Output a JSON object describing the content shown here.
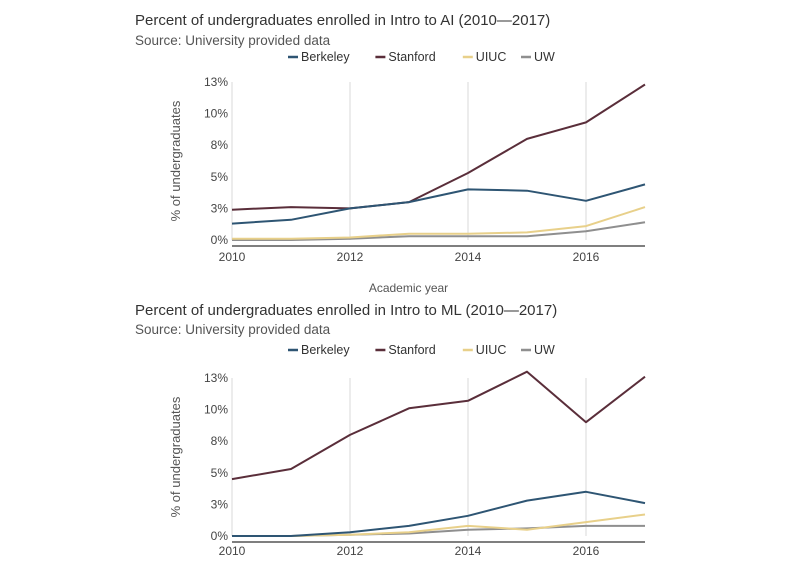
{
  "chart_data": [
    {
      "type": "line",
      "title": "Percent of undergraduates enrolled in Intro to AI (2010—2017)",
      "subtitle": "Source: University provided data",
      "xlabel": "Academic year",
      "ylabel": "% of undergraduates",
      "x": [
        2010,
        2011,
        2012,
        2013,
        2014,
        2015,
        2016,
        2017
      ],
      "x_ticks": [
        "2010",
        "2012",
        "2014",
        "2016"
      ],
      "y_ticks": [
        "0%",
        "3%",
        "5%",
        "8%",
        "10%",
        "13%"
      ],
      "ylim": [
        0,
        12.5
      ],
      "xlim": [
        2010,
        2017
      ],
      "grid": "vertical",
      "legend": "top",
      "series": [
        {
          "name": "Berkeley",
          "color": "#2e5573",
          "values": [
            1.3,
            1.6,
            2.5,
            3.0,
            4.0,
            3.9,
            3.1,
            4.4
          ]
        },
        {
          "name": "Stanford",
          "color": "#5a2e3a",
          "values": [
            2.4,
            2.6,
            2.5,
            3.0,
            5.3,
            8.0,
            9.3,
            12.3
          ]
        },
        {
          "name": "UIUC",
          "color": "#e8d08a",
          "values": [
            0.1,
            0.1,
            0.2,
            0.5,
            0.5,
            0.6,
            1.1,
            2.6
          ]
        },
        {
          "name": "UW",
          "color": "#8f8f8f",
          "values": [
            0.0,
            0.0,
            0.1,
            0.3,
            0.3,
            0.3,
            0.7,
            1.4
          ]
        }
      ]
    },
    {
      "type": "line",
      "title": "Percent of undergraduates enrolled in Intro to ML (2010—2017)",
      "subtitle": "Source: University provided data",
      "xlabel": "",
      "ylabel": "% of undergraduates",
      "x": [
        2010,
        2011,
        2012,
        2013,
        2014,
        2015,
        2016,
        2017
      ],
      "x_ticks": [
        "2010",
        "2012",
        "2014",
        "2016"
      ],
      "y_ticks": [
        "0%",
        "3%",
        "5%",
        "8%",
        "10%",
        "13%"
      ],
      "ylim": [
        0,
        12.5
      ],
      "xlim": [
        2010,
        2017
      ],
      "grid": "vertical",
      "legend": "top",
      "series": [
        {
          "name": "Berkeley",
          "color": "#2e5573",
          "values": [
            0.0,
            0.0,
            0.3,
            0.8,
            1.6,
            2.8,
            3.5,
            2.6
          ]
        },
        {
          "name": "Stanford",
          "color": "#5a2e3a",
          "values": [
            4.5,
            5.3,
            8.0,
            10.1,
            10.7,
            13.0,
            9.0,
            12.6
          ]
        },
        {
          "name": "UIUC",
          "color": "#e8d08a",
          "values": [
            0.0,
            0.0,
            0.1,
            0.3,
            0.8,
            0.5,
            1.1,
            1.7
          ]
        },
        {
          "name": "UW",
          "color": "#8f8f8f",
          "values": [
            0.0,
            0.0,
            0.1,
            0.2,
            0.5,
            0.6,
            0.8,
            0.8
          ]
        }
      ]
    }
  ]
}
